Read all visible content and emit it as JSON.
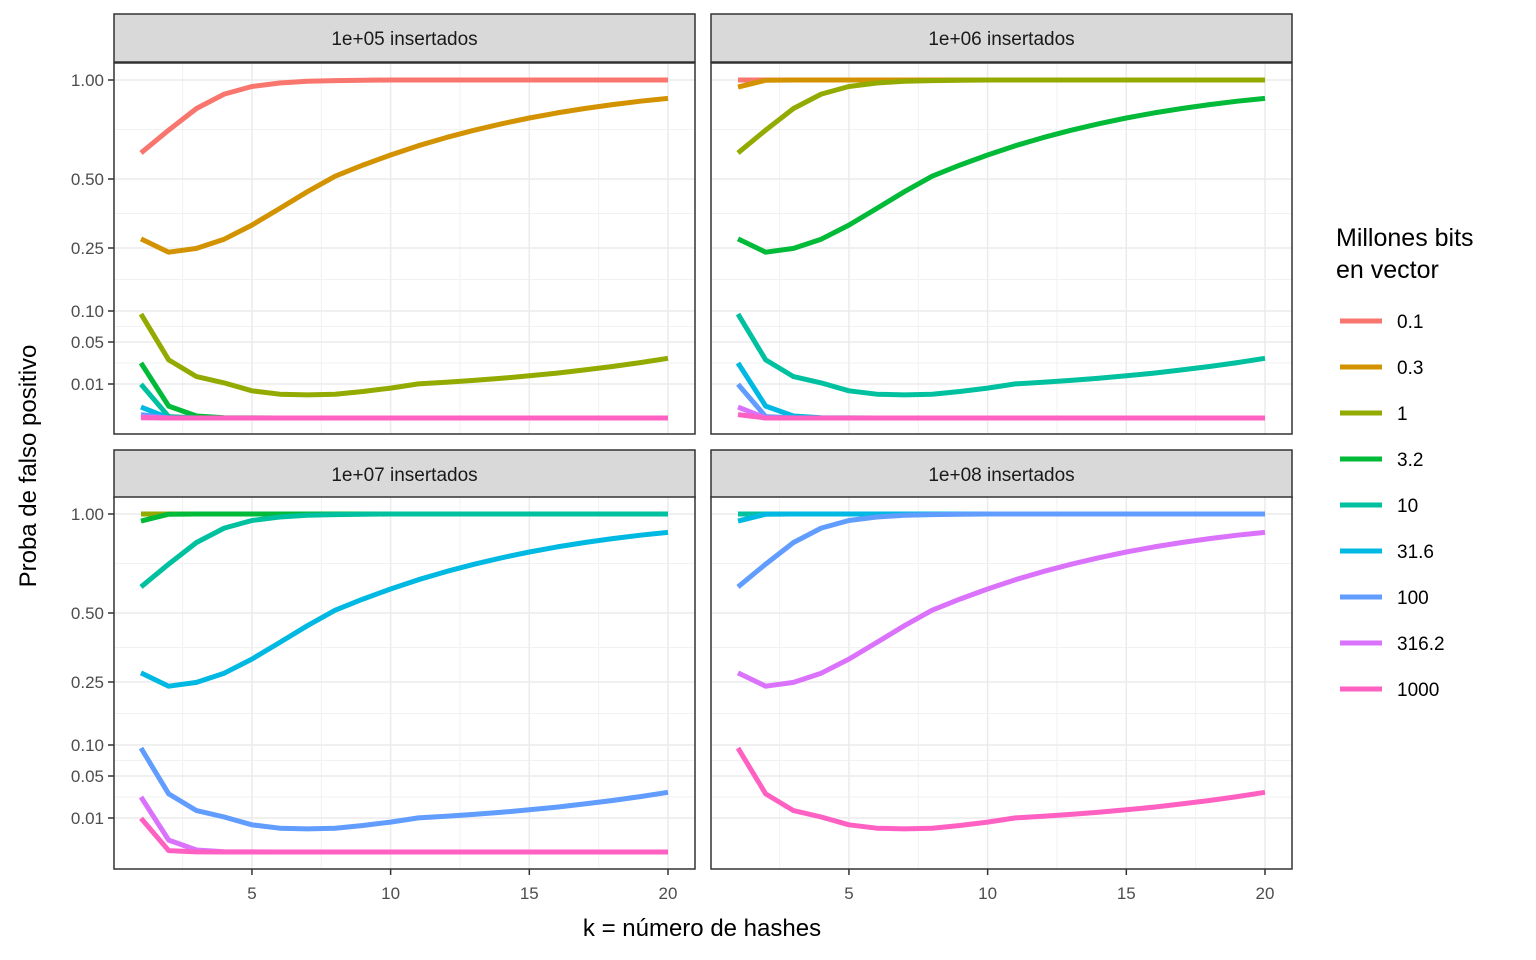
{
  "chart_data": {
    "type": "line",
    "xlabel": "k = número de hashes",
    "ylabel": "Proba de falso positivo",
    "x": [
      1,
      2,
      3,
      4,
      5,
      6,
      7,
      8,
      9,
      10,
      11,
      12,
      13,
      14,
      15,
      16,
      17,
      18,
      19,
      20
    ],
    "xlim": [
      1,
      20
    ],
    "x_ticks": [
      5,
      10,
      15,
      20
    ],
    "x_tick_labels": [
      "5",
      "10",
      "15",
      "20"
    ],
    "y_scale": "custom (non-linear)",
    "y_ticks": [
      0.01,
      0.05,
      0.1,
      0.25,
      0.5,
      1.0
    ],
    "y_tick_labels": [
      "0.01",
      "0.05",
      "0.10",
      "0.25",
      "0.50",
      "1.00"
    ],
    "grid": true,
    "legend": {
      "title_lines": [
        "Millones bits",
        " en vector"
      ],
      "position": "right",
      "entries": [
        {
          "label": "0.1",
          "color": "#F8766D"
        },
        {
          "label": "0.3",
          "color": "#D39200"
        },
        {
          "label": "1",
          "color": "#93AA00"
        },
        {
          "label": "3.2",
          "color": "#00BA38"
        },
        {
          "label": "10",
          "color": "#00C19F"
        },
        {
          "label": "31.6",
          "color": "#00B9E3"
        },
        {
          "label": "100",
          "color": "#619CFF"
        },
        {
          "label": "316.2",
          "color": "#DB72FB"
        },
        {
          "label": "1000",
          "color": "#FF61C3"
        }
      ]
    },
    "panels": [
      {
        "title": "1e+05 insertados",
        "series": [
          {
            "name": "0.1",
            "color": "#F8766D",
            "values": [
              0.632,
              0.747,
              0.856,
              0.929,
              0.967,
              0.985,
              0.994,
              0.997,
              0.999,
              1.0,
              1.0,
              1.0,
              1.0,
              1.0,
              1.0,
              1.0,
              1.0,
              1.0,
              1.0,
              1.0
            ]
          },
          {
            "name": "0.3",
            "color": "#D39200",
            "values": [
              0.283,
              0.24,
              0.249,
              0.282,
              0.333,
              0.393,
              0.454,
              0.514,
              0.57,
              0.621,
              0.668,
              0.709,
              0.746,
              0.779,
              0.808,
              0.834,
              0.856,
              0.876,
              0.893,
              0.907
            ]
          },
          {
            "name": "1",
            "color": "#93AA00",
            "values": [
              0.095,
              0.033,
              0.017,
              0.011,
              0.008,
              0.007,
              0.0068,
              0.007,
              0.0078,
              0.0088,
              0.0101,
              0.0116,
              0.0134,
              0.0154,
              0.0178,
              0.0204,
              0.0234,
              0.0267,
              0.0304,
              0.0345
            ]
          },
          {
            "name": "3.2",
            "color": "#00BA38",
            "values": [
              0.03,
              0.0035,
              0.0006,
              0.0001,
              3e-05,
              0,
              0,
              0,
              0,
              0,
              0,
              0,
              0,
              0,
              0,
              0,
              0,
              0,
              0,
              0
            ]
          },
          {
            "name": "10",
            "color": "#00C19F",
            "values": [
              0.0099,
              0.0004,
              2e-05,
              0,
              0,
              0,
              0,
              0,
              0,
              0,
              0,
              0,
              0,
              0,
              0,
              0,
              0,
              0,
              0,
              0
            ]
          },
          {
            "name": "31.6",
            "color": "#00B9E3",
            "values": [
              0.0032,
              1e-05,
              0,
              0,
              0,
              0,
              0,
              0,
              0,
              0,
              0,
              0,
              0,
              0,
              0,
              0,
              0,
              0,
              0,
              0
            ]
          },
          {
            "name": "100",
            "color": "#619CFF",
            "values": [
              0.001,
              0,
              0,
              0,
              0,
              0,
              0,
              0,
              0,
              0,
              0,
              0,
              0,
              0,
              0,
              0,
              0,
              0,
              0,
              0
            ]
          },
          {
            "name": "316.2",
            "color": "#DB72FB",
            "values": [
              0.0003,
              0,
              0,
              0,
              0,
              0,
              0,
              0,
              0,
              0,
              0,
              0,
              0,
              0,
              0,
              0,
              0,
              0,
              0,
              0
            ]
          },
          {
            "name": "1000",
            "color": "#FF61C3",
            "values": [
              0.0001,
              0,
              0,
              0,
              0,
              0,
              0,
              0,
              0,
              0,
              0,
              0,
              0,
              0,
              0,
              0,
              0,
              0,
              0,
              0
            ]
          }
        ]
      },
      {
        "title": "1e+06 insertados",
        "series": [
          {
            "name": "0.1",
            "color": "#F8766D",
            "values": [
              1.0,
              1.0,
              1.0,
              1.0,
              1.0,
              1.0,
              1.0,
              1.0,
              1.0,
              1.0,
              1.0,
              1.0,
              1.0,
              1.0,
              1.0,
              1.0,
              1.0,
              1.0,
              1.0,
              1.0
            ]
          },
          {
            "name": "0.3",
            "color": "#D39200",
            "values": [
              0.964,
              0.999,
              1.0,
              1.0,
              1.0,
              1.0,
              1.0,
              1.0,
              1.0,
              1.0,
              1.0,
              1.0,
              1.0,
              1.0,
              1.0,
              1.0,
              1.0,
              1.0,
              1.0,
              1.0
            ]
          },
          {
            "name": "1",
            "color": "#93AA00",
            "values": [
              0.632,
              0.747,
              0.856,
              0.929,
              0.967,
              0.985,
              0.994,
              0.997,
              0.999,
              1.0,
              1.0,
              1.0,
              1.0,
              1.0,
              1.0,
              1.0,
              1.0,
              1.0,
              1.0,
              1.0
            ]
          },
          {
            "name": "3.2",
            "color": "#00BA38",
            "values": [
              0.283,
              0.24,
              0.249,
              0.282,
              0.333,
              0.393,
              0.454,
              0.514,
              0.57,
              0.621,
              0.668,
              0.709,
              0.746,
              0.779,
              0.808,
              0.834,
              0.856,
              0.876,
              0.893,
              0.907
            ]
          },
          {
            "name": "10",
            "color": "#00C19F",
            "values": [
              0.095,
              0.033,
              0.017,
              0.011,
              0.008,
              0.007,
              0.0068,
              0.007,
              0.0078,
              0.0088,
              0.0101,
              0.0116,
              0.0134,
              0.0154,
              0.0178,
              0.0204,
              0.0234,
              0.0267,
              0.0304,
              0.0345
            ]
          },
          {
            "name": "31.6",
            "color": "#00B9E3",
            "values": [
              0.03,
              0.0035,
              0.0006,
              0.0001,
              3e-05,
              0,
              0,
              0,
              0,
              0,
              0,
              0,
              0,
              0,
              0,
              0,
              0,
              0,
              0,
              0
            ]
          },
          {
            "name": "100",
            "color": "#619CFF",
            "values": [
              0.0099,
              0.0004,
              2e-05,
              0,
              0,
              0,
              0,
              0,
              0,
              0,
              0,
              0,
              0,
              0,
              0,
              0,
              0,
              0,
              0,
              0
            ]
          },
          {
            "name": "316.2",
            "color": "#DB72FB",
            "values": [
              0.0032,
              1e-05,
              0,
              0,
              0,
              0,
              0,
              0,
              0,
              0,
              0,
              0,
              0,
              0,
              0,
              0,
              0,
              0,
              0,
              0
            ]
          },
          {
            "name": "1000",
            "color": "#FF61C3",
            "values": [
              0.001,
              0,
              0,
              0,
              0,
              0,
              0,
              0,
              0,
              0,
              0,
              0,
              0,
              0,
              0,
              0,
              0,
              0,
              0,
              0
            ]
          }
        ]
      },
      {
        "title": "1e+07 insertados",
        "series": [
          {
            "name": "0.3",
            "color": "#D39200",
            "values": [
              1.0,
              1.0,
              1.0,
              1.0,
              1.0,
              1.0,
              1.0,
              1.0,
              1.0,
              1.0,
              1.0,
              1.0,
              1.0,
              1.0,
              1.0,
              1.0,
              1.0,
              1.0,
              1.0,
              1.0
            ]
          },
          {
            "name": "1",
            "color": "#93AA00",
            "values": [
              1.0,
              1.0,
              1.0,
              1.0,
              1.0,
              1.0,
              1.0,
              1.0,
              1.0,
              1.0,
              1.0,
              1.0,
              1.0,
              1.0,
              1.0,
              1.0,
              1.0,
              1.0,
              1.0,
              1.0
            ]
          },
          {
            "name": "3.2",
            "color": "#00BA38",
            "values": [
              0.964,
              0.999,
              1.0,
              1.0,
              1.0,
              1.0,
              1.0,
              1.0,
              1.0,
              1.0,
              1.0,
              1.0,
              1.0,
              1.0,
              1.0,
              1.0,
              1.0,
              1.0,
              1.0,
              1.0
            ]
          },
          {
            "name": "10",
            "color": "#00C19F",
            "values": [
              0.632,
              0.747,
              0.856,
              0.929,
              0.967,
              0.985,
              0.994,
              0.997,
              0.999,
              1.0,
              1.0,
              1.0,
              1.0,
              1.0,
              1.0,
              1.0,
              1.0,
              1.0,
              1.0,
              1.0
            ]
          },
          {
            "name": "31.6",
            "color": "#00B9E3",
            "values": [
              0.283,
              0.24,
              0.249,
              0.282,
              0.333,
              0.393,
              0.454,
              0.514,
              0.57,
              0.621,
              0.668,
              0.709,
              0.746,
              0.779,
              0.808,
              0.834,
              0.856,
              0.876,
              0.893,
              0.907
            ]
          },
          {
            "name": "100",
            "color": "#619CFF",
            "values": [
              0.095,
              0.033,
              0.017,
              0.011,
              0.008,
              0.007,
              0.0068,
              0.007,
              0.0078,
              0.0088,
              0.0101,
              0.0116,
              0.0134,
              0.0154,
              0.0178,
              0.0204,
              0.0234,
              0.0267,
              0.0304,
              0.0345
            ]
          },
          {
            "name": "316.2",
            "color": "#DB72FB",
            "values": [
              0.03,
              0.0035,
              0.0006,
              0.0001,
              3e-05,
              0,
              0,
              0,
              0,
              0,
              0,
              0,
              0,
              0,
              0,
              0,
              0,
              0,
              0,
              0
            ]
          },
          {
            "name": "1000",
            "color": "#FF61C3",
            "values": [
              0.0099,
              0.0004,
              2e-05,
              0,
              0,
              0,
              0,
              0,
              0,
              0,
              0,
              0,
              0,
              0,
              0,
              0,
              0,
              0,
              0,
              0
            ]
          }
        ]
      },
      {
        "title": "1e+08 insertados",
        "series": [
          {
            "name": "10",
            "color": "#00C19F",
            "values": [
              1.0,
              1.0,
              1.0,
              1.0,
              1.0,
              1.0,
              1.0,
              1.0,
              1.0,
              1.0,
              1.0,
              1.0,
              1.0,
              1.0,
              1.0,
              1.0,
              1.0,
              1.0,
              1.0,
              1.0
            ]
          },
          {
            "name": "31.6",
            "color": "#00B9E3",
            "values": [
              0.964,
              0.999,
              1.0,
              1.0,
              1.0,
              1.0,
              1.0,
              1.0,
              1.0,
              1.0,
              1.0,
              1.0,
              1.0,
              1.0,
              1.0,
              1.0,
              1.0,
              1.0,
              1.0,
              1.0
            ]
          },
          {
            "name": "100",
            "color": "#619CFF",
            "values": [
              0.632,
              0.747,
              0.856,
              0.929,
              0.967,
              0.985,
              0.994,
              0.997,
              0.999,
              1.0,
              1.0,
              1.0,
              1.0,
              1.0,
              1.0,
              1.0,
              1.0,
              1.0,
              1.0,
              1.0
            ]
          },
          {
            "name": "316.2",
            "color": "#DB72FB",
            "values": [
              0.283,
              0.24,
              0.249,
              0.282,
              0.333,
              0.393,
              0.454,
              0.514,
              0.57,
              0.621,
              0.668,
              0.709,
              0.746,
              0.779,
              0.808,
              0.834,
              0.856,
              0.876,
              0.893,
              0.907
            ]
          },
          {
            "name": "1000",
            "color": "#FF61C3",
            "values": [
              0.095,
              0.033,
              0.017,
              0.011,
              0.008,
              0.007,
              0.0068,
              0.007,
              0.0078,
              0.0088,
              0.0101,
              0.0116,
              0.0134,
              0.0154,
              0.0178,
              0.0204,
              0.0234,
              0.0267,
              0.0304,
              0.0345
            ]
          }
        ]
      }
    ]
  }
}
